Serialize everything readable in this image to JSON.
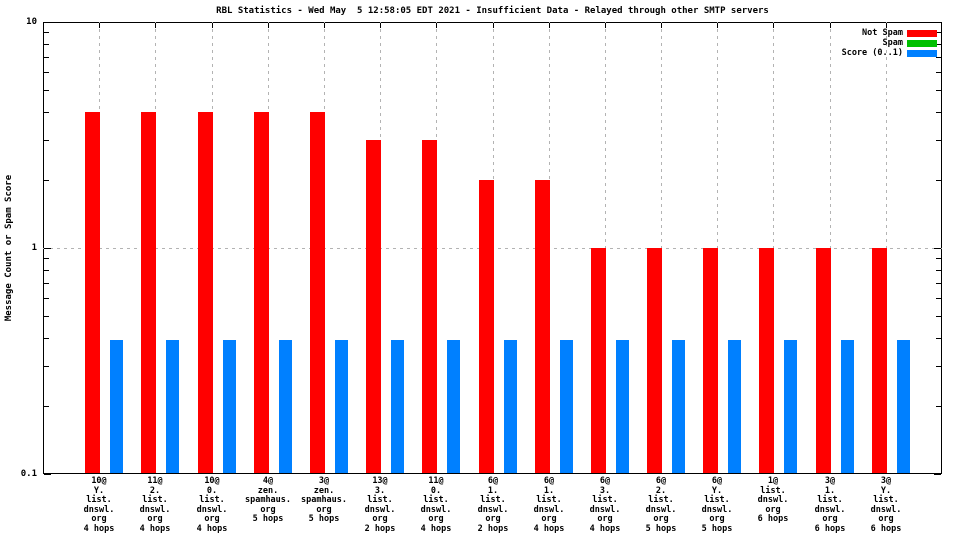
{
  "title": "RBL Statistics - Wed May  5 12:58:05 EDT 2021 - Insufficient Data - Relayed through other SMTP servers",
  "colors": {
    "not_spam": "#ff0000",
    "spam": "#00c000",
    "score": "#0080ff",
    "grid": "#b3b3b3",
    "axis": "#000000",
    "background": "#ffffff"
  },
  "legend": {
    "position": "top-right",
    "entries": [
      {
        "label": "Not Spam",
        "color": "#ff0000"
      },
      {
        "label": "Spam",
        "color": "#00c000"
      },
      {
        "label": "Score (0..1)",
        "color": "#0080ff"
      }
    ]
  },
  "chart_data": {
    "type": "bar",
    "title": "RBL Statistics - Wed May  5 12:58:05 EDT 2021 - Insufficient Data - Relayed through other SMTP servers",
    "xlabel": "",
    "ylabel": "Message Count or Spam Score",
    "yscale": "log",
    "ylim": [
      0.1,
      10
    ],
    "ytick_labels": [
      "10",
      "1",
      "0.1"
    ],
    "grid": true,
    "legend_position": "top-right",
    "categories": [
      [
        "10@",
        "Y.",
        "list.",
        "dnswl.",
        "org",
        "4 hops"
      ],
      [
        "11@",
        "2.",
        "list.",
        "dnswl.",
        "org",
        "4 hops"
      ],
      [
        "10@",
        "0.",
        "list.",
        "dnswl.",
        "org",
        "4 hops"
      ],
      [
        "4@",
        "zen.",
        "spamhaus.",
        "org",
        "5 hops"
      ],
      [
        "3@",
        "zen.",
        "spamhaus.",
        "org",
        "5 hops"
      ],
      [
        "13@",
        "3.",
        "list.",
        "dnswl.",
        "org",
        "2 hops"
      ],
      [
        "11@",
        "0.",
        "list.",
        "dnswl.",
        "org",
        "4 hops"
      ],
      [
        "6@",
        "1.",
        "list.",
        "dnswl.",
        "org",
        "2 hops"
      ],
      [
        "6@",
        "1.",
        "list.",
        "dnswl.",
        "org",
        "4 hops"
      ],
      [
        "6@",
        "3.",
        "list.",
        "dnswl.",
        "org",
        "4 hops"
      ],
      [
        "6@",
        "2.",
        "list.",
        "dnswl.",
        "org",
        "5 hops"
      ],
      [
        "6@",
        "Y.",
        "list.",
        "dnswl.",
        "org",
        "5 hops"
      ],
      [
        "1@",
        "list.",
        "dnswl.",
        "org",
        "6 hops"
      ],
      [
        "3@",
        "1.",
        "list.",
        "dnswl.",
        "org",
        "6 hops"
      ],
      [
        "3@",
        "Y.",
        "list.",
        "dnswl.",
        "org",
        "6 hops"
      ]
    ],
    "series": [
      {
        "name": "Not Spam",
        "color": "#ff0000",
        "values": [
          4,
          4,
          4,
          4,
          4,
          3,
          3,
          2,
          2,
          1,
          1,
          1,
          1,
          1,
          1
        ]
      },
      {
        "name": "Spam",
        "color": "#00c000",
        "values": [
          0,
          0,
          0,
          0,
          0,
          0,
          0,
          0,
          0,
          0,
          0,
          0,
          0,
          0,
          0
        ]
      },
      {
        "name": "Score (0..1)",
        "color": "#0080ff",
        "values": [
          0.39,
          0.39,
          0.39,
          0.39,
          0.39,
          0.39,
          0.39,
          0.39,
          0.39,
          0.39,
          0.39,
          0.39,
          0.39,
          0.39,
          0.39
        ]
      }
    ]
  }
}
